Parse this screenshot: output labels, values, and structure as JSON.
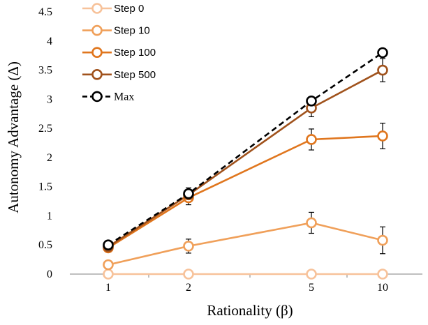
{
  "chart_data": {
    "type": "line",
    "categories": [
      "1",
      "2",
      "5",
      "10"
    ],
    "xlabel": "Rationality (β)",
    "ylabel": "Autonomy Advantage (Δ)",
    "ylim": [
      0,
      4.5
    ],
    "yticks": [
      "0",
      "0.5",
      "1",
      "1.5",
      "2",
      "2.5",
      "3",
      "3.5",
      "4",
      "4.5"
    ],
    "grid": false,
    "legend_position": "top-left",
    "series": [
      {
        "name": "Step 0",
        "color": "#F7C29A",
        "dash": false,
        "values": [
          0.0,
          0.0,
          0.0,
          0.0
        ],
        "errors": [
          0,
          0,
          0,
          0
        ]
      },
      {
        "name": "Step 10",
        "color": "#F0A05A",
        "dash": false,
        "values": [
          0.16,
          0.48,
          0.88,
          0.58
        ],
        "errors": [
          0,
          0.12,
          0.18,
          0.23
        ]
      },
      {
        "name": "Step 100",
        "color": "#E0761E",
        "dash": false,
        "values": [
          0.45,
          1.31,
          2.31,
          2.37
        ],
        "errors": [
          0,
          0.12,
          0.18,
          0.22
        ]
      },
      {
        "name": "Step 500",
        "color": "#A0521C",
        "dash": false,
        "values": [
          0.47,
          1.36,
          2.85,
          3.5
        ],
        "errors": [
          0,
          0.12,
          0.15,
          0.2
        ]
      },
      {
        "name": "Max",
        "color": "#000000",
        "dash": true,
        "values": [
          0.5,
          1.38,
          2.97,
          3.8
        ],
        "errors": [
          0,
          0,
          0,
          0
        ]
      }
    ]
  }
}
